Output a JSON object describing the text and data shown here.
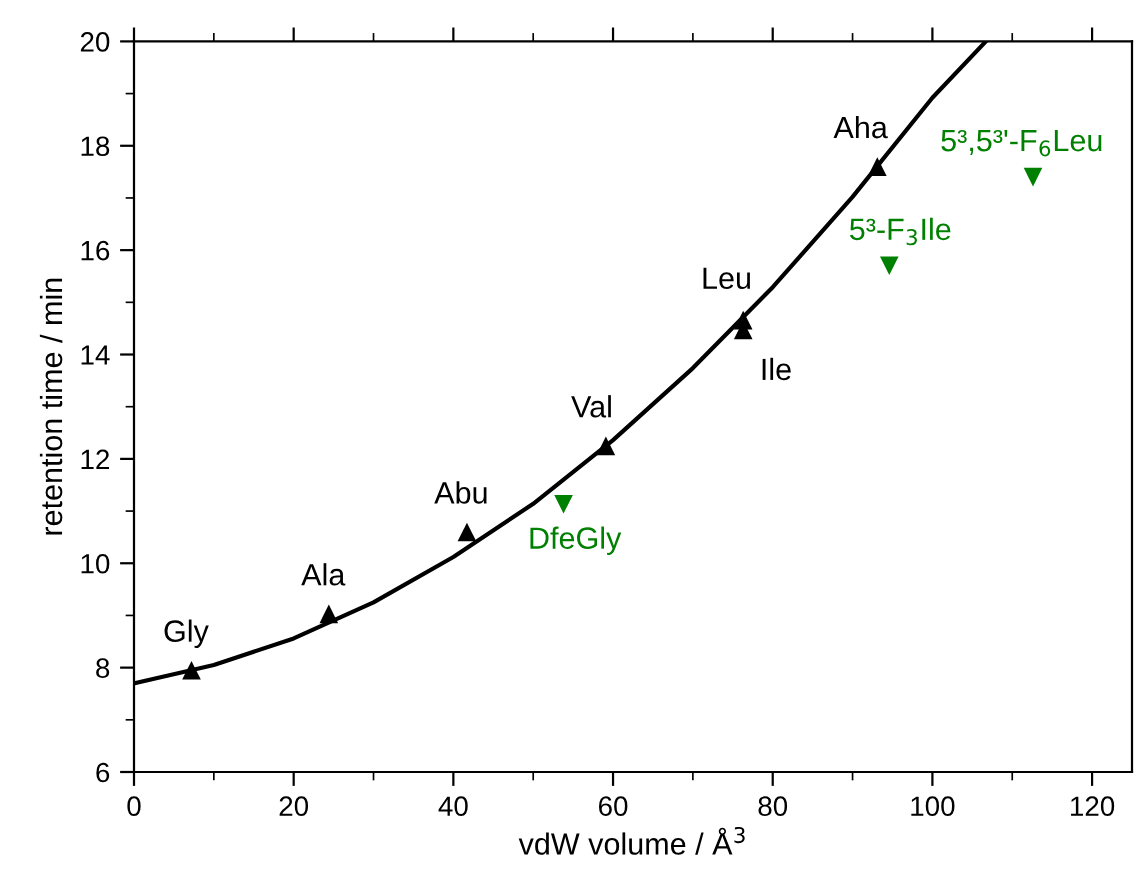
{
  "chart_data": {
    "type": "scatter",
    "xlabel": "vdW volume / Å$^{3}$",
    "ylabel": "retention time / min",
    "xlim": [
      0,
      125
    ],
    "ylim": [
      6,
      20
    ],
    "xticks": [
      0,
      20,
      40,
      60,
      80,
      100,
      120
    ],
    "yticks": [
      6,
      8,
      10,
      12,
      14,
      16,
      18,
      20
    ],
    "grid": false,
    "legend": false,
    "series": [
      {
        "type": "scatter",
        "color": "#000000",
        "marker": "triangle",
        "x": [
          7.2,
          24.4,
          41.7,
          59.1,
          76.3,
          76.3,
          93.1
        ],
        "values": [
          7.95,
          9.03,
          10.6,
          12.25,
          14.66,
          14.47,
          17.6
        ]
      },
      {
        "type": "scatter",
        "color": "#008000",
        "marker": "triangle_down",
        "x": [
          53.8,
          94.6,
          112.6
        ],
        "values": [
          11.13,
          15.7,
          17.4
        ]
      },
      {
        "type": "line",
        "color": "#000000",
        "marker": "none",
        "x": [
          0,
          10,
          20,
          30,
          40,
          50,
          60,
          70,
          80,
          90,
          100,
          106.7
        ],
        "values": [
          7.7,
          8.05,
          8.56,
          9.25,
          10.12,
          11.14,
          12.36,
          13.74,
          15.29,
          17.02,
          18.92,
          20
        ]
      }
    ],
    "annotations": [
      {
        "text": "Gly",
        "x": 7.2,
        "y": 7.95
      },
      {
        "text": "Ala",
        "x": 24.4,
        "y": 9.03
      },
      {
        "text": "Abu",
        "x": 41.7,
        "y": 10.6
      },
      {
        "text": "Val",
        "x": 59.1,
        "y": 12.25
      },
      {
        "text": "Leu",
        "x": 76.3,
        "y": 14.66
      },
      {
        "text": "Ile",
        "x": 76.3,
        "y": 14.47
      },
      {
        "text": "Aha",
        "x": 93.1,
        "y": 17.6
      },
      {
        "text": "DfeGly",
        "x": 53.8,
        "y": 11.13
      },
      {
        "text": "5³-F$_{3}$Ile",
        "x": 94.6,
        "y": 15.7
      },
      {
        "text": "5³,5³'-F$_{6}$Leu",
        "x": 112.6,
        "y": 17.4
      }
    ]
  }
}
